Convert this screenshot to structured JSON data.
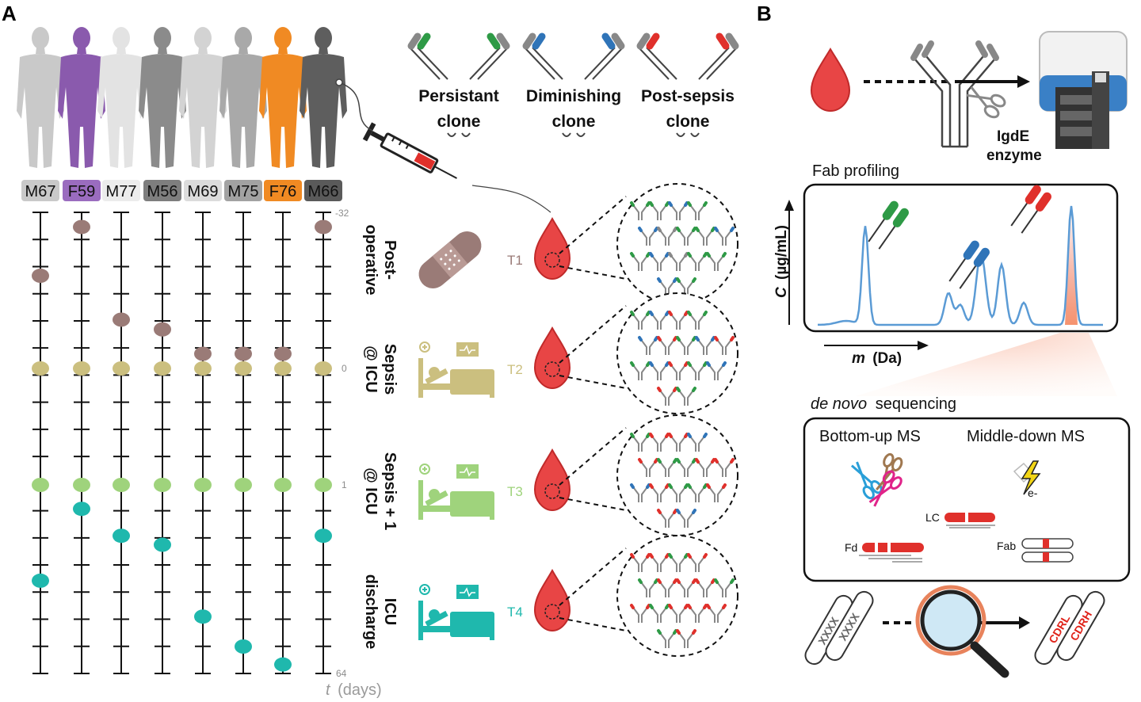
{
  "panel_a": {
    "label": "A",
    "patients": [
      {
        "id": "M67",
        "color": "#c9c9c9",
        "tag_color": "#c9c9c9"
      },
      {
        "id": "F59",
        "color": "#8a5aad",
        "tag_color": "#9a6cbf"
      },
      {
        "id": "M77",
        "color": "#e3e3e3",
        "tag_color": "#ececec"
      },
      {
        "id": "M56",
        "color": "#8b8b8b",
        "tag_color": "#7e7e7e"
      },
      {
        "id": "M69",
        "color": "#d3d3d3",
        "tag_color": "#dcdcdc"
      },
      {
        "id": "M75",
        "color": "#a9a9a9",
        "tag_color": "#a2a2a2"
      },
      {
        "id": "F76",
        "color": "#f08a23",
        "tag_color": "#f08a23"
      },
      {
        "id": "M66",
        "color": "#5e5e5e",
        "tag_color": "#5a5a5a"
      }
    ],
    "axis": {
      "top_label": "-32",
      "zero_label": "0",
      "one_label": "1",
      "bottom_label": "64",
      "title_var": "t",
      "title_unit": "(days)"
    },
    "timepoint_colors": {
      "T1": "#9a7b77",
      "T2": "#cbbf7f",
      "T3": "#9fd37c",
      "T4": "#1fb8ad"
    },
    "sampling_days": [
      {
        "patient": "M67",
        "T1": -19,
        "T4": 33
      },
      {
        "patient": "F59",
        "T1": -29,
        "T4": 9
      },
      {
        "patient": "M77",
        "T1": -10,
        "T4": 18
      },
      {
        "patient": "M56",
        "T1": -8,
        "T4": 21
      },
      {
        "patient": "M69",
        "T1": -3,
        "T4": 45
      },
      {
        "patient": "M75",
        "T1": -3,
        "T4": 55
      },
      {
        "patient": "F76",
        "T1": -3,
        "T4": 61
      },
      {
        "patient": "M66",
        "T1": -29,
        "T4": 18
      }
    ],
    "clones": [
      {
        "line1": "Persistant",
        "line2": "clone",
        "color": "#2e9a46"
      },
      {
        "line1": "Diminishing",
        "line2": "clone",
        "color": "#2f74b8"
      },
      {
        "line1": "Post-sepsis",
        "line2": "clone",
        "color": "#e0302b"
      }
    ],
    "stages": [
      {
        "lines": [
          "Post-",
          "operative"
        ],
        "tp": "T1",
        "icon": "bandage-icon"
      },
      {
        "lines": [
          "Sepsis",
          "@ ICU"
        ],
        "tp": "T2",
        "icon": "hospital-bed-icon"
      },
      {
        "lines": [
          "Sepsis + 1",
          "@ ICU"
        ],
        "tp": "T3",
        "icon": "hospital-bed-icon"
      },
      {
        "lines": [
          "ICU",
          "discharge"
        ],
        "tp": "T4",
        "icon": "hospital-bed-icon"
      }
    ]
  },
  "panel_b": {
    "label": "B",
    "enzyme_line1": "IgdE",
    "enzyme_line2": "enzyme",
    "fab_title": "Fab profiling",
    "y_axis_var": "C",
    "y_axis_unit": "(µg/mL)",
    "x_axis_var": "m",
    "x_axis_unit": "(Da)",
    "denovo_italic": "de novo",
    "denovo_rest": "sequencing",
    "bottom_up": "Bottom-up MS",
    "middle_down": "Middle-down MS",
    "electron": "e-",
    "lc": "LC",
    "fd": "Fd",
    "fab": "Fab",
    "placeholder_seq": "XXXX",
    "cdrl": "CDRL",
    "cdrh": "CDRH",
    "trace_color": "#5b9bd5",
    "blood_color": "#e84545"
  }
}
